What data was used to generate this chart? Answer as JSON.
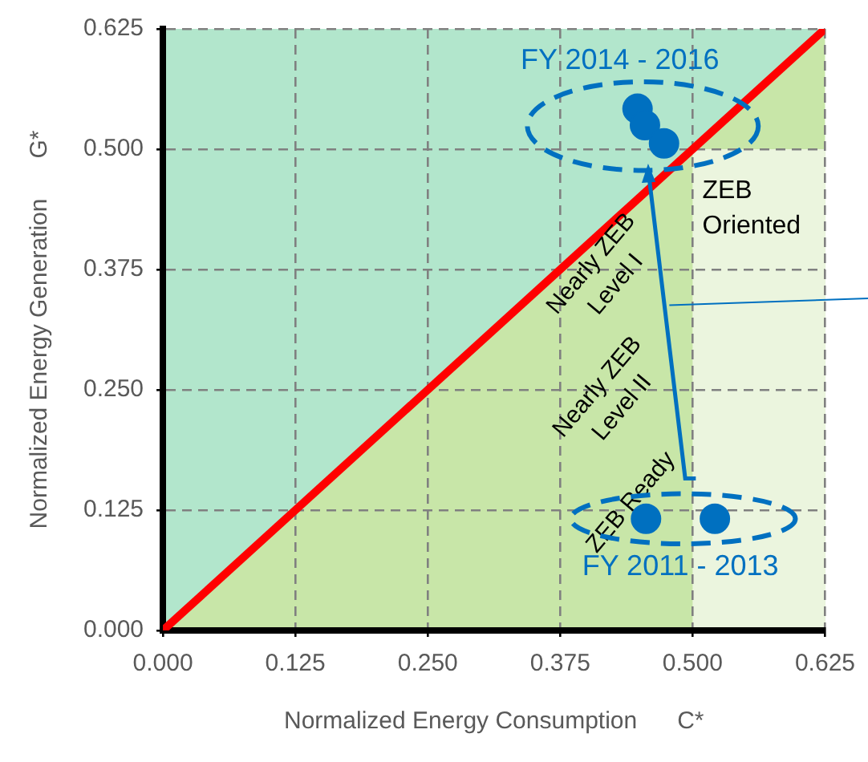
{
  "chart_data": {
    "type": "scatter",
    "xlabel": "Normalized Energy Consumption      C*",
    "ylabel": "Normalized Energy Generation      G*",
    "xlim": [
      0,
      0.625
    ],
    "ylim": [
      0,
      0.625
    ],
    "xticks": [
      {
        "value": 0,
        "label": "0.000"
      },
      {
        "value": 0.125,
        "label": "0.125"
      },
      {
        "value": 0.25,
        "label": "0.250"
      },
      {
        "value": 0.375,
        "label": "0.375"
      },
      {
        "value": 0.5,
        "label": "0.500"
      },
      {
        "value": 0.625,
        "label": "0.625"
      }
    ],
    "yticks": [
      {
        "value": 0,
        "label": "0.000"
      },
      {
        "value": 0.125,
        "label": "0.125"
      },
      {
        "value": 0.25,
        "label": "0.250"
      },
      {
        "value": 0.375,
        "label": "0.375"
      },
      {
        "value": 0.5,
        "label": "0.500"
      },
      {
        "value": 0.625,
        "label": "0.625"
      }
    ],
    "grid": true,
    "legend": false,
    "marker": "circle",
    "series": [
      {
        "name": "FY 2014 - 2016",
        "color": "#0070c0",
        "x": [
          0.448,
          0.455,
          0.473
        ],
        "values": [
          0.542,
          0.525,
          0.506
        ]
      },
      {
        "name": "FY 2011 - 2013",
        "color": "#0070c0",
        "x": [
          0.456,
          0.521
        ],
        "values": [
          0.116,
          0.116
        ]
      },
      {
        "type": "line",
        "color": "#ff0000",
        "marker": "none",
        "x": [
          0,
          0.625
        ],
        "values": [
          0,
          0.625
        ]
      }
    ],
    "bands": [
      {
        "axis": "x",
        "from": 0.5,
        "to": 0.625,
        "label": "ZEB\nOriented",
        "color": "#ebf5de"
      }
    ],
    "annotations": [
      "Nearly ZEB\nLevel I",
      "Nearly ZEB\nLevel II",
      "ZEB Ready"
    ]
  }
}
